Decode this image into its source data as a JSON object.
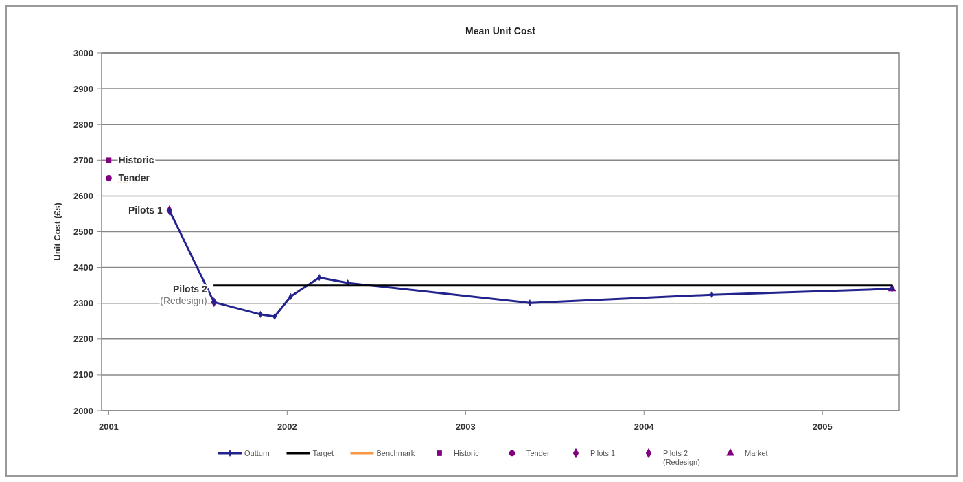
{
  "chart_data": {
    "type": "line",
    "title": "Mean Unit Cost",
    "ylabel": "Unit Cost (£s)",
    "xlim": [
      2000.96,
      2005.43
    ],
    "xticks": [
      2001,
      2002,
      2003,
      2004,
      2005
    ],
    "ylim": [
      2000,
      3000
    ],
    "yticks": [
      2000,
      2100,
      2200,
      2300,
      2400,
      2500,
      2600,
      2700,
      2800,
      2900,
      3000
    ],
    "grid": "y",
    "legend": "bottom",
    "series": [
      {
        "name": "Outturn",
        "color": "#23238e",
        "marker": "diamond",
        "x": [
          2001.34,
          2001.59,
          2001.85,
          2001.93,
          2002.02,
          2002.18,
          2002.34,
          2003.36,
          2004.38,
          2005.39
        ],
        "values": [
          2560,
          2303,
          2269,
          2263,
          2319,
          2372,
          2357,
          2301,
          2324,
          2340
        ]
      },
      {
        "name": "Target",
        "color": "#000000",
        "x": [
          2001.59,
          2005.39
        ],
        "values": [
          2350,
          2350
        ]
      },
      {
        "name": "Benchmark",
        "color": "#f79646",
        "x": [
          2001.06,
          2001.15
        ],
        "values": [
          2638,
          2638
        ]
      },
      {
        "name": "Historic",
        "type": "scatter",
        "color": "#800080",
        "marker": "square",
        "x": [
          2001
        ],
        "values": [
          2700
        ]
      },
      {
        "name": "Tender",
        "type": "scatter",
        "color": "#800080",
        "marker": "circle",
        "x": [
          2001
        ],
        "values": [
          2650
        ]
      },
      {
        "name": "Pilots 1",
        "type": "scatter",
        "color": "#800080",
        "marker": "diamond",
        "x": [
          2001.34
        ],
        "values": [
          2560
        ]
      },
      {
        "name": "Pilots 2\n(Redesign)",
        "type": "scatter",
        "color": "#800080",
        "marker": "diamond",
        "x": [
          2001.59
        ],
        "values": [
          2303
        ]
      },
      {
        "name": "Market",
        "type": "scatter",
        "color": "#800080",
        "marker": "triangle",
        "x": [
          2005.39
        ],
        "values": [
          2340
        ]
      }
    ],
    "annotations": [
      {
        "text": "Historic",
        "x": 2001,
        "y": 2700
      },
      {
        "text": "Tender",
        "x": 2001,
        "y": 2650
      },
      {
        "text": "Pilots 1",
        "x": 2001.34,
        "y": 2560
      },
      {
        "text": "Pilots 2\n(Redesign)",
        "x": 2001.59,
        "y": 2303
      }
    ]
  }
}
